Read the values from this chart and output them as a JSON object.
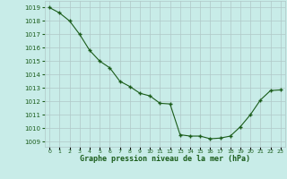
{
  "x": [
    0,
    1,
    2,
    3,
    4,
    5,
    6,
    7,
    8,
    9,
    10,
    11,
    12,
    13,
    14,
    15,
    16,
    17,
    18,
    19,
    20,
    21,
    22,
    23
  ],
  "y": [
    1019.0,
    1018.6,
    1018.0,
    1017.0,
    1015.8,
    1015.0,
    1014.5,
    1013.5,
    1013.1,
    1012.6,
    1012.4,
    1011.85,
    1011.8,
    1009.5,
    1009.4,
    1009.4,
    1009.2,
    1009.25,
    1009.4,
    1010.1,
    1011.0,
    1012.1,
    1012.8,
    1012.85
  ],
  "line_color": "#1a5c1a",
  "marker": "+",
  "marker_size": 3,
  "marker_linewidth": 1.0,
  "bg_color": "#c8ece8",
  "grid_color": "#b0c8c8",
  "xlabel": "Graphe pression niveau de la mer (hPa)",
  "xlabel_color": "#1a5c1a",
  "tick_color": "#1a5c1a",
  "ylabel_ticks": [
    1009,
    1010,
    1011,
    1012,
    1013,
    1014,
    1015,
    1016,
    1017,
    1018,
    1019
  ],
  "ylim": [
    1008.6,
    1019.5
  ],
  "xlim": [
    -0.5,
    23.5
  ],
  "ytick_fontsize": 5.0,
  "xtick_fontsize": 4.5,
  "xlabel_fontsize": 6.0
}
